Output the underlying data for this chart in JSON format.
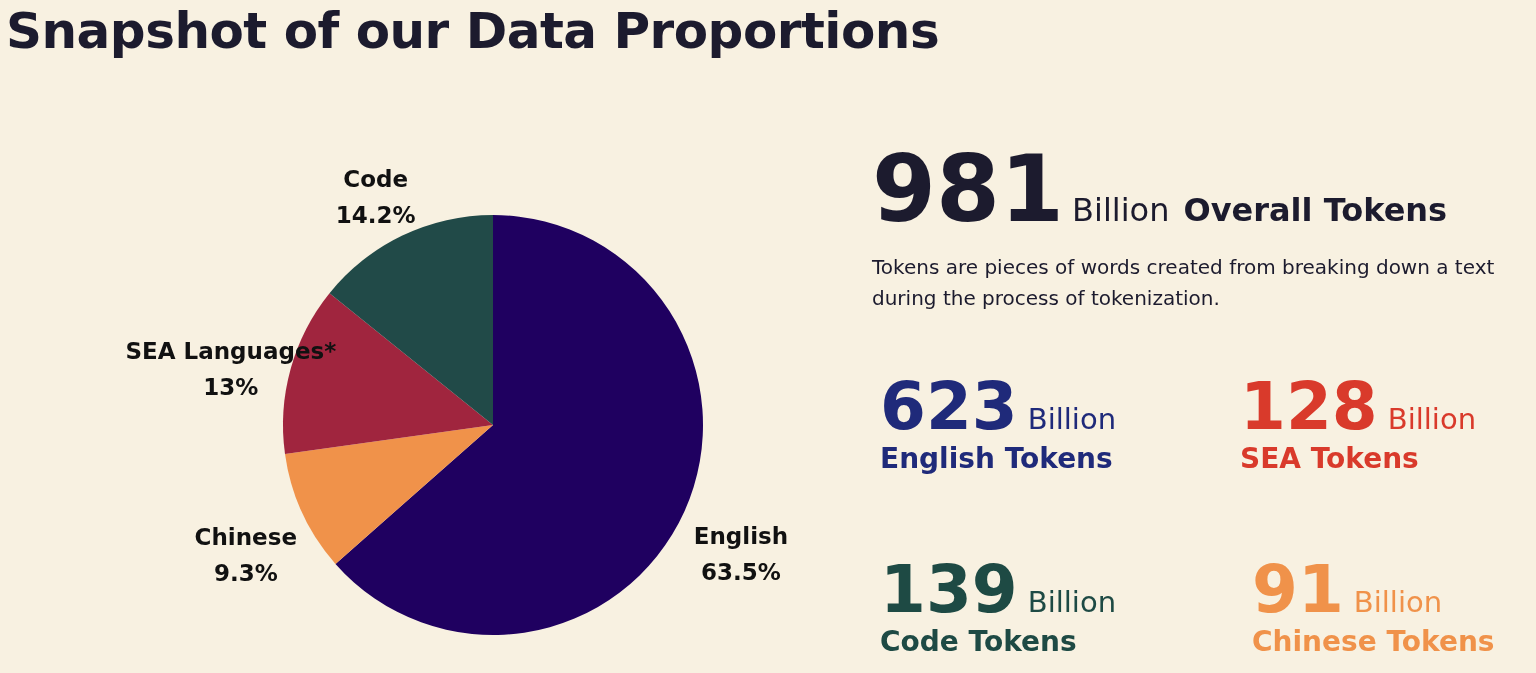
{
  "chart_data": [
    {
      "type": "pie",
      "title": "Snapshot of our Data Proportions",
      "categories": [
        "English",
        "Chinese",
        "SEA Languages*",
        "Code"
      ],
      "values": [
        63.5,
        9.3,
        13,
        14.2
      ],
      "value_labels": [
        "63.5%",
        "9.3%",
        "13%",
        "14.2%"
      ],
      "colors": [
        "#1f0060",
        "#f0924a",
        "#a0253e",
        "#214a48"
      ]
    },
    {
      "type": "other",
      "annotations": [
        "981",
        "Billion",
        "Overall Tokens",
        "Tokens are pieces of words created from breaking down a text during the process of tokenization.",
        "623",
        "Billion",
        "English Tokens",
        "128",
        "Billion",
        "SEA Tokens",
        "139",
        "Billion",
        "Code Tokens",
        "91",
        "Billion",
        "Chinese Tokens"
      ]
    }
  ]
}
